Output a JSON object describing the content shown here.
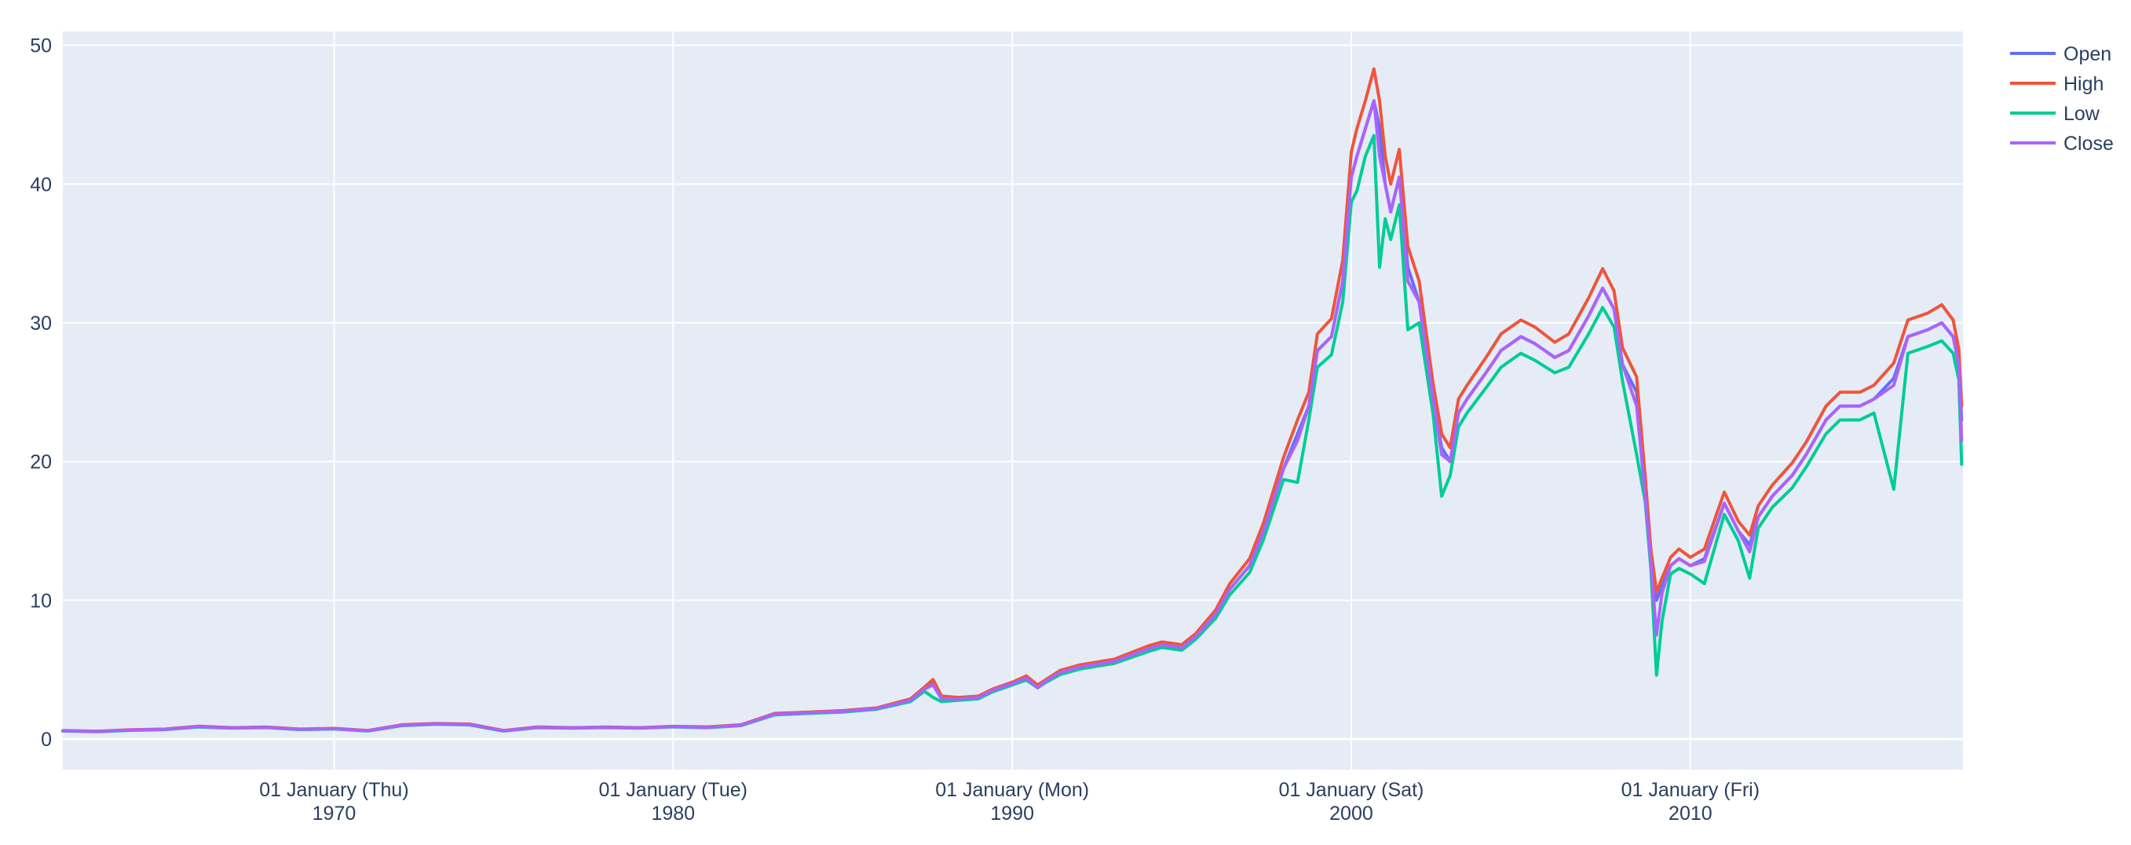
{
  "colors": {
    "plot_bg": "#e5ecf6",
    "grid": "#ffffff",
    "text": "#2a3f5f"
  },
  "legend": {
    "placement": "top-right-outside",
    "items": [
      {
        "name": "Open",
        "color": "#636efa"
      },
      {
        "name": "High",
        "color": "#ef553b"
      },
      {
        "name": "Low",
        "color": "#00cc96"
      },
      {
        "name": "Close",
        "color": "#ab63fa"
      }
    ]
  },
  "chart_data": {
    "type": "line",
    "title": "",
    "xlabel": "",
    "ylabel": "",
    "grid": true,
    "xlim": [
      "1962-01-01",
      "2018-01-15"
    ],
    "ylim": [
      -2.2,
      51
    ],
    "y_ticks": [
      0,
      10,
      20,
      30,
      40,
      50
    ],
    "x_ticks": [
      {
        "date": "1970-01-01",
        "line1": "01 January (Thu)",
        "line2": "1970"
      },
      {
        "date": "1980-01-01",
        "line1": "01 January (Tue)",
        "line2": "1980"
      },
      {
        "date": "1990-01-01",
        "line1": "01 January (Mon)",
        "line2": "1990"
      },
      {
        "date": "2000-01-01",
        "line1": "01 January (Sat)",
        "line2": "2000"
      },
      {
        "date": "2010-01-01",
        "line1": "01 January (Fri)",
        "line2": "2010"
      }
    ],
    "x": [
      "1962-01",
      "1963-01",
      "1964-01",
      "1965-01",
      "1966-01",
      "1967-01",
      "1968-01",
      "1969-01",
      "1970-01",
      "1971-01",
      "1972-01",
      "1973-01",
      "1974-01",
      "1975-01",
      "1976-01",
      "1977-01",
      "1978-01",
      "1979-01",
      "1980-01",
      "1981-01",
      "1982-01",
      "1983-01",
      "1984-01",
      "1985-01",
      "1986-01",
      "1987-01",
      "1987-06",
      "1987-09",
      "1987-12",
      "1988-06",
      "1989-01",
      "1989-06",
      "1990-01",
      "1990-06",
      "1990-10",
      "1991-01",
      "1991-06",
      "1992-01",
      "1993-01",
      "1994-01",
      "1994-06",
      "1995-01",
      "1995-06",
      "1996-01",
      "1996-06",
      "1997-01",
      "1997-06",
      "1998-01",
      "1998-06",
      "1998-10",
      "1999-01",
      "1999-06",
      "1999-10",
      "2000-01",
      "2000-03",
      "2000-06",
      "2000-09",
      "2000-11",
      "2001-01",
      "2001-03",
      "2001-06",
      "2001-09",
      "2002-01",
      "2002-06",
      "2002-09",
      "2002-12",
      "2003-03",
      "2003-06",
      "2004-01",
      "2004-06",
      "2005-01",
      "2005-06",
      "2006-01",
      "2006-06",
      "2007-01",
      "2007-06",
      "2007-10",
      "2008-01",
      "2008-06",
      "2008-09",
      "2008-11",
      "2009-01",
      "2009-03",
      "2009-06",
      "2009-09",
      "2010-01",
      "2010-06",
      "2011-01",
      "2011-06",
      "2011-10",
      "2012-01",
      "2012-06",
      "2013-01",
      "2013-06",
      "2014-01",
      "2014-06",
      "2015-01",
      "2015-06",
      "2016-01",
      "2016-06",
      "2017-01",
      "2017-06",
      "2017-10",
      "2017-12",
      "2018-01"
    ],
    "series": [
      {
        "name": "Open",
        "values": [
          0.6,
          0.55,
          0.65,
          0.7,
          0.9,
          0.8,
          0.85,
          0.7,
          0.75,
          0.6,
          1.0,
          1.1,
          1.05,
          0.6,
          0.85,
          0.8,
          0.85,
          0.8,
          0.9,
          0.85,
          1.0,
          1.8,
          1.9,
          2.0,
          2.2,
          2.8,
          3.6,
          4.1,
          3.0,
          2.9,
          3.0,
          3.5,
          4.0,
          4.4,
          3.8,
          4.2,
          4.8,
          5.2,
          5.6,
          6.5,
          6.8,
          6.6,
          7.4,
          9.0,
          10.8,
          12.5,
          15.0,
          19.5,
          22.0,
          24.0,
          28.0,
          29.0,
          33.0,
          40.5,
          42.0,
          44.0,
          46.0,
          44.0,
          40.0,
          38.0,
          40.5,
          34.0,
          31.5,
          24.5,
          21.0,
          20.0,
          23.5,
          24.5,
          26.5,
          28.0,
          29.0,
          28.5,
          27.5,
          28.0,
          30.5,
          32.5,
          31.0,
          27.0,
          25.0,
          18.0,
          13.0,
          10.0,
          11.0,
          12.5,
          13.0,
          12.5,
          13.0,
          17.0,
          15.0,
          14.0,
          16.0,
          17.5,
          19.0,
          20.5,
          23.0,
          24.0,
          24.0,
          24.5,
          26.0,
          29.0,
          29.5,
          30.0,
          29.0,
          27.0,
          23.0
        ]
      },
      {
        "name": "High",
        "values": [
          0.62,
          0.57,
          0.67,
          0.72,
          0.93,
          0.82,
          0.87,
          0.72,
          0.77,
          0.62,
          1.03,
          1.13,
          1.08,
          0.62,
          0.88,
          0.82,
          0.87,
          0.82,
          0.92,
          0.88,
          1.03,
          1.85,
          1.95,
          2.05,
          2.25,
          2.9,
          3.75,
          4.3,
          3.1,
          3.0,
          3.1,
          3.6,
          4.1,
          4.55,
          3.9,
          4.3,
          4.95,
          5.35,
          5.75,
          6.7,
          7.0,
          6.8,
          7.6,
          9.3,
          11.2,
          13.0,
          15.6,
          20.3,
          23.0,
          25.0,
          29.2,
          30.3,
          34.5,
          42.3,
          44.0,
          46.0,
          48.3,
          46.0,
          42.0,
          40.0,
          42.5,
          35.5,
          33.0,
          25.6,
          22.0,
          21.0,
          24.5,
          25.5,
          27.6,
          29.2,
          30.2,
          29.7,
          28.6,
          29.2,
          31.8,
          33.9,
          32.3,
          28.2,
          26.1,
          18.9,
          13.7,
          10.6,
          11.6,
          13.1,
          13.7,
          13.1,
          13.7,
          17.8,
          15.7,
          14.7,
          16.8,
          18.3,
          19.9,
          21.4,
          24.0,
          25.0,
          25.0,
          25.5,
          27.1,
          30.2,
          30.7,
          31.3,
          30.2,
          28.1,
          24.0
        ]
      },
      {
        "name": "Low",
        "values": [
          0.58,
          0.53,
          0.63,
          0.68,
          0.87,
          0.78,
          0.83,
          0.68,
          0.73,
          0.58,
          0.97,
          1.07,
          1.02,
          0.58,
          0.82,
          0.78,
          0.83,
          0.78,
          0.88,
          0.82,
          0.97,
          1.75,
          1.85,
          1.95,
          2.15,
          2.7,
          3.45,
          3.0,
          2.7,
          2.8,
          2.9,
          3.4,
          3.9,
          4.25,
          3.7,
          4.1,
          4.65,
          5.05,
          5.45,
          6.3,
          6.6,
          6.4,
          7.2,
          8.7,
          10.4,
          12.0,
          14.4,
          18.7,
          18.5,
          23.0,
          26.8,
          27.7,
          31.5,
          38.7,
          39.5,
          42.0,
          43.5,
          34.0,
          37.5,
          36.0,
          38.5,
          29.5,
          30.0,
          23.4,
          17.5,
          19.0,
          22.5,
          23.5,
          25.4,
          26.8,
          27.8,
          27.3,
          26.4,
          26.8,
          29.2,
          31.1,
          29.7,
          25.8,
          20.5,
          17.1,
          12.3,
          4.6,
          8.5,
          11.9,
          12.3,
          11.9,
          11.2,
          16.2,
          14.3,
          11.6,
          15.2,
          16.7,
          18.1,
          19.6,
          22.0,
          23.0,
          23.0,
          23.5,
          18.0,
          27.8,
          28.3,
          28.7,
          27.8,
          25.9,
          19.8
        ]
      },
      {
        "name": "Close",
        "values": [
          0.6,
          0.55,
          0.65,
          0.7,
          0.9,
          0.8,
          0.85,
          0.7,
          0.75,
          0.6,
          1.0,
          1.1,
          1.05,
          0.6,
          0.85,
          0.8,
          0.85,
          0.8,
          0.9,
          0.85,
          1.0,
          1.8,
          1.9,
          2.0,
          2.2,
          2.8,
          3.6,
          3.9,
          2.9,
          2.9,
          3.0,
          3.5,
          4.0,
          4.4,
          3.7,
          4.2,
          4.8,
          5.2,
          5.6,
          6.5,
          6.8,
          6.6,
          7.4,
          9.0,
          10.8,
          12.5,
          15.0,
          19.5,
          21.5,
          24.0,
          28.0,
          29.0,
          33.0,
          40.5,
          42.0,
          44.0,
          46.0,
          42.0,
          40.0,
          38.0,
          40.5,
          33.0,
          31.5,
          24.5,
          20.5,
          20.0,
          23.5,
          24.5,
          26.5,
          28.0,
          29.0,
          28.5,
          27.5,
          28.0,
          30.5,
          32.5,
          31.0,
          27.0,
          24.0,
          17.5,
          12.8,
          7.5,
          10.5,
          12.5,
          13.0,
          12.5,
          12.8,
          17.0,
          15.0,
          13.5,
          16.0,
          17.5,
          19.0,
          20.5,
          23.0,
          24.0,
          24.0,
          24.5,
          25.5,
          29.0,
          29.5,
          30.0,
          29.0,
          27.0,
          21.5
        ]
      }
    ]
  }
}
